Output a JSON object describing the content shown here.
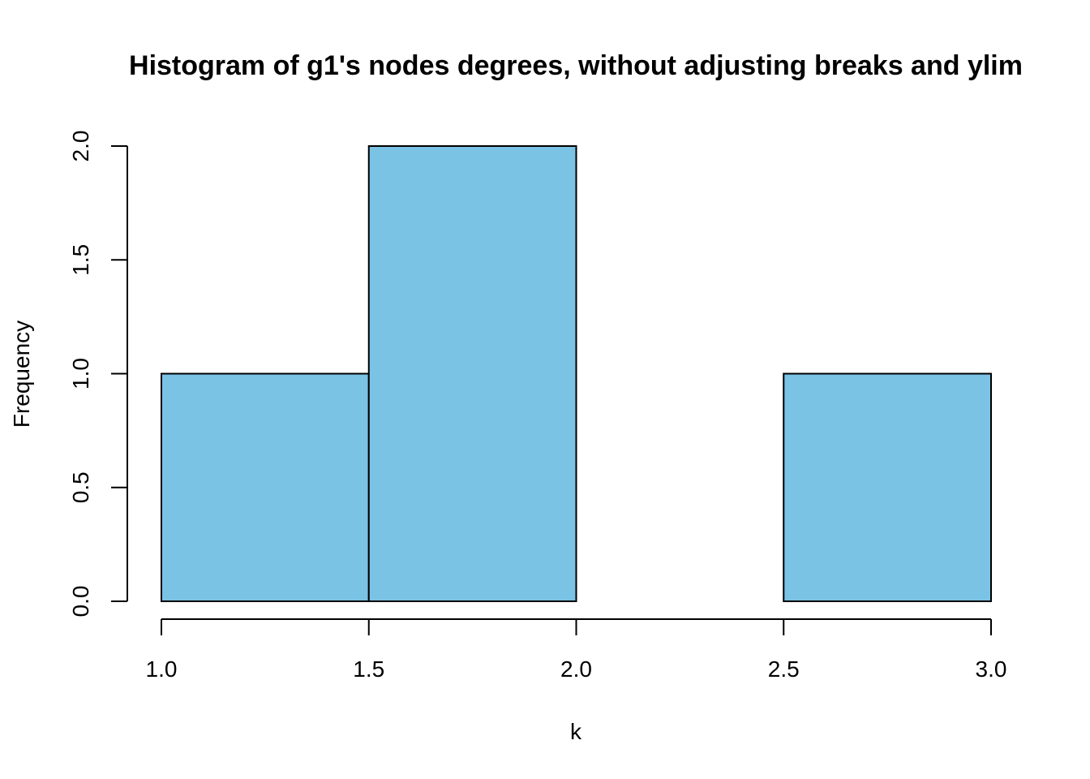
{
  "chart_data": {
    "type": "bar",
    "title": "Histogram of g1's nodes degrees, without adjusting breaks and ylim",
    "xlabel": "k",
    "ylabel": "Frequency",
    "breaks": [
      1.0,
      1.5,
      2.0,
      2.5,
      3.0
    ],
    "bins": [
      {
        "from": 1.0,
        "to": 1.5,
        "value": 1
      },
      {
        "from": 1.5,
        "to": 2.0,
        "value": 2
      },
      {
        "from": 2.0,
        "to": 2.5,
        "value": 0
      },
      {
        "from": 2.5,
        "to": 3.0,
        "value": 1
      }
    ],
    "xlim": [
      1.0,
      3.0
    ],
    "ylim": [
      0.0,
      2.0
    ],
    "x_ticks": [
      "1.0",
      "1.5",
      "2.0",
      "2.5",
      "3.0"
    ],
    "y_ticks": [
      "0.0",
      "0.5",
      "1.0",
      "1.5",
      "2.0"
    ],
    "bar_color": "#7ac3e5",
    "border_color": "#000000",
    "grid": false,
    "legend": "none"
  }
}
